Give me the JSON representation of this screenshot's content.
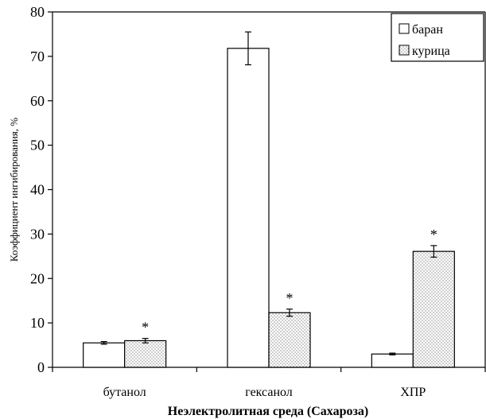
{
  "chart_data": {
    "type": "bar",
    "categories": [
      "бутанол",
      "гексанол",
      "ХПР"
    ],
    "series": [
      {
        "name": "баран",
        "values": [
          5.5,
          71.8,
          3.0
        ],
        "errors": [
          0.3,
          3.7,
          0.2
        ],
        "fill": "#ffffff",
        "pattern": "none"
      },
      {
        "name": "курица",
        "values": [
          6.0,
          12.3,
          26.1
        ],
        "errors": [
          0.5,
          0.8,
          1.3
        ],
        "fill": "#ffffff",
        "pattern": "dotted"
      }
    ],
    "annotations": [
      {
        "category": "бутанол",
        "series": "курица",
        "text": "*"
      },
      {
        "category": "гексанол",
        "series": "курица",
        "text": "*"
      },
      {
        "category": "ХПР",
        "series": "курица",
        "text": "*"
      }
    ],
    "yticks": [
      0,
      10,
      20,
      30,
      40,
      50,
      60,
      70,
      80
    ],
    "ylim": [
      0,
      80
    ],
    "xlabel": "Неэлектролитная среда (Сахароза)",
    "ylabel": "Коэффициент ингибирования, %",
    "legend_position": "top-right",
    "grid": false
  }
}
